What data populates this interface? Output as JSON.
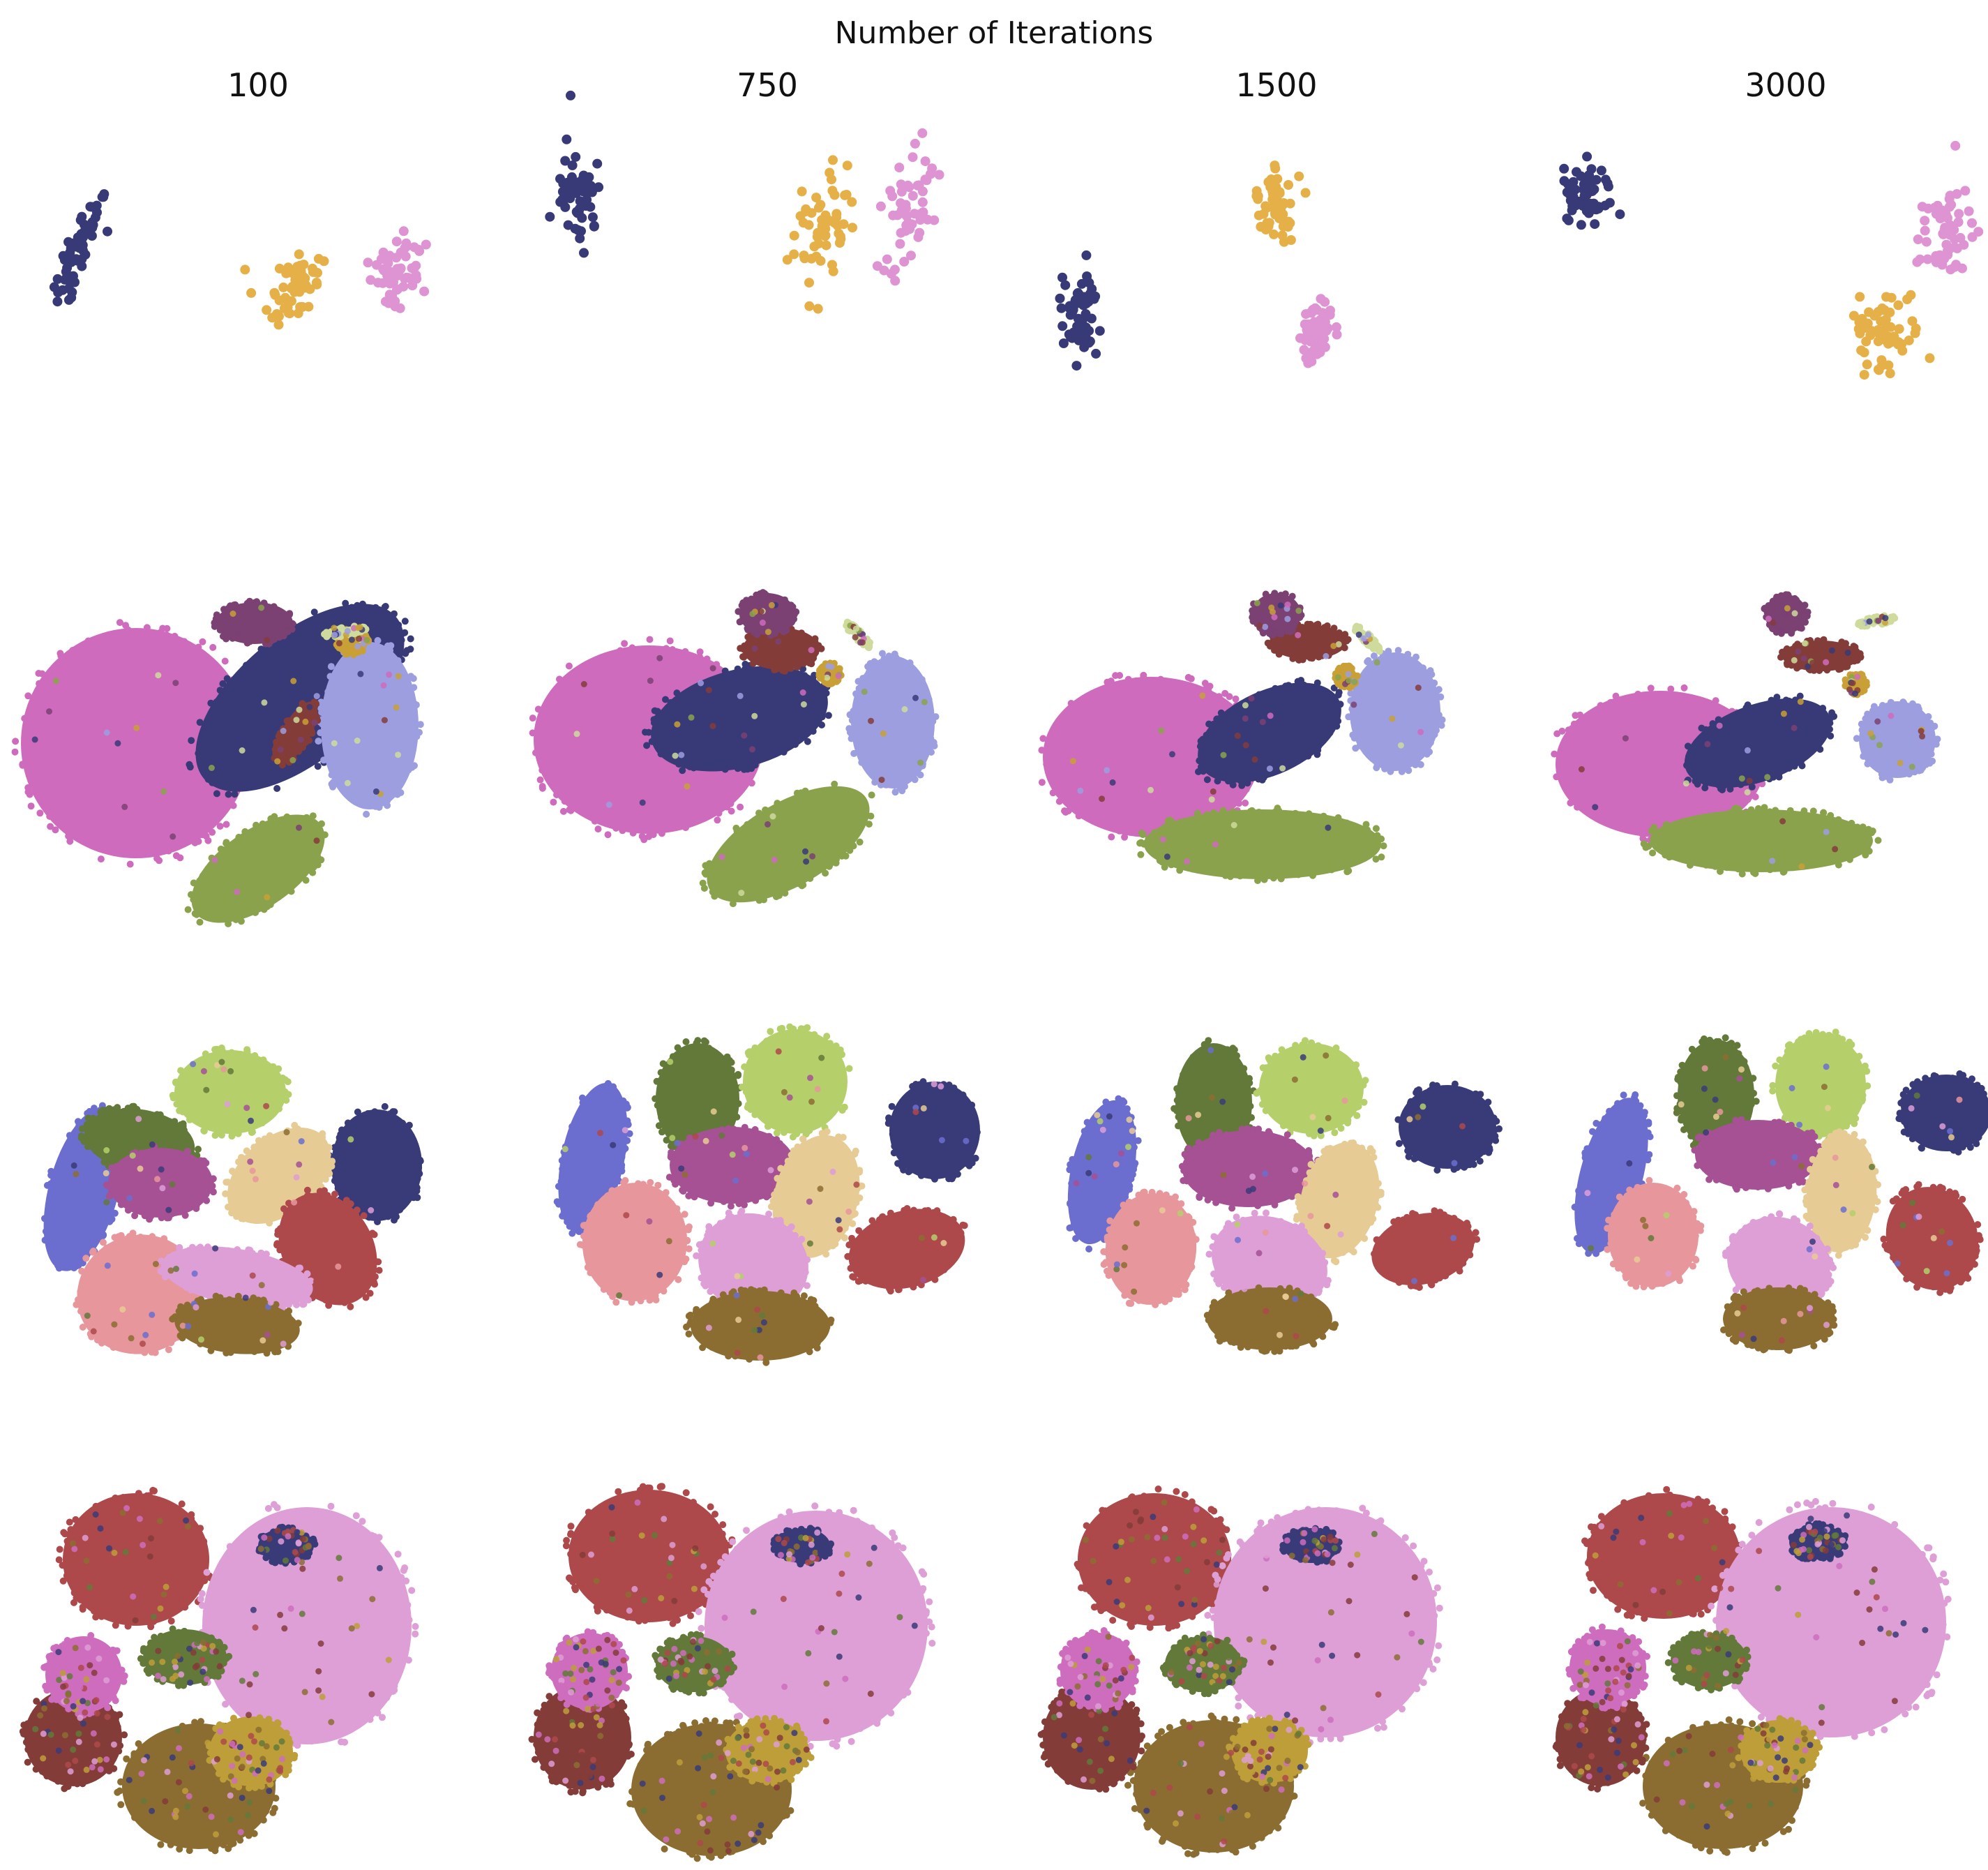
{
  "figure": {
    "suptitle": "Number of Iterations",
    "column_titles": [
      "100",
      "750",
      "1500",
      "3000"
    ]
  },
  "chart_data": {
    "type": "scatter",
    "title": "Number of Iterations",
    "axes_visible": false,
    "grid": false,
    "legend": "none",
    "columns": [
      "100",
      "750",
      "1500",
      "3000"
    ],
    "rows": [
      {
        "row": 1,
        "kind": "sparse",
        "clusters": [
          {
            "color": "#383a78",
            "counts": 60
          },
          {
            "color": "#e6b048",
            "counts": 55
          },
          {
            "color": "#de93d2",
            "counts": 55
          }
        ]
      },
      {
        "row": 2,
        "kind": "dense",
        "clusters": [
          {
            "color": "#cf6bbd"
          },
          {
            "color": "#383a78"
          },
          {
            "color": "#9c9ee0"
          },
          {
            "color": "#8ba24c"
          },
          {
            "color": "#843c39"
          },
          {
            "color": "#7b4173"
          },
          {
            "color": "#c8a036"
          },
          {
            "color": "#cedb9c"
          }
        ]
      },
      {
        "row": 3,
        "kind": "dense",
        "clusters": [
          {
            "color": "#6b6ecf"
          },
          {
            "color": "#637939"
          },
          {
            "color": "#b5cf6b"
          },
          {
            "color": "#393b79"
          },
          {
            "color": "#a55194"
          },
          {
            "color": "#e7cb94"
          },
          {
            "color": "#ad494a"
          },
          {
            "color": "#e7969c"
          },
          {
            "color": "#de9ed6"
          },
          {
            "color": "#8c6d31"
          }
        ]
      },
      {
        "row": 4,
        "kind": "dense",
        "clusters": [
          {
            "color": "#ad494a"
          },
          {
            "color": "#de9ed6"
          },
          {
            "color": "#8c6d31"
          },
          {
            "color": "#bd9e39"
          },
          {
            "color": "#843c39"
          },
          {
            "color": "#ce6dbd"
          },
          {
            "color": "#637939"
          },
          {
            "color": "#393b79"
          }
        ]
      }
    ]
  }
}
